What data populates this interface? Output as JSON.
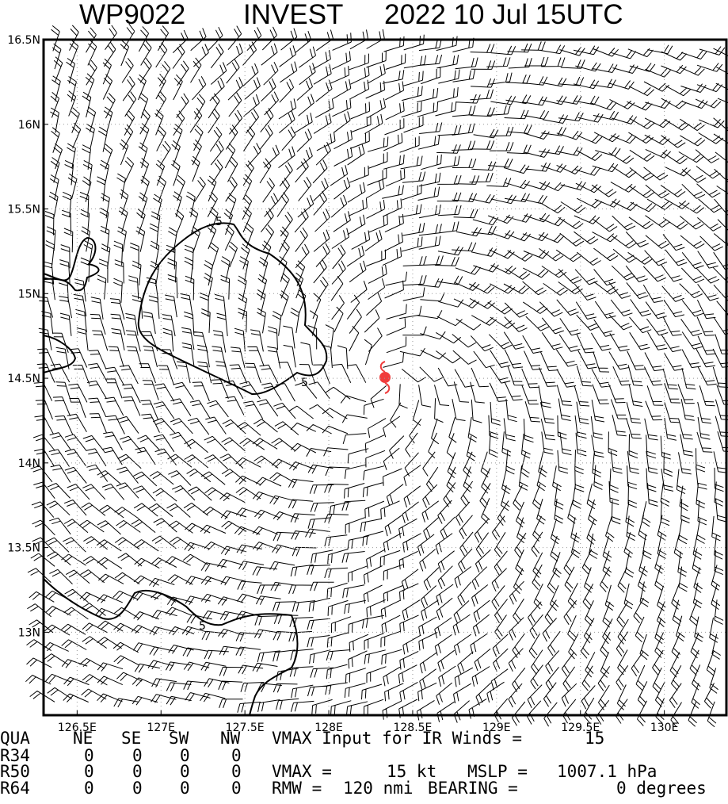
{
  "header": {
    "storm_id": "WP9022",
    "storm_type": "INVEST",
    "time": "2022 10 Jul 15UTC"
  },
  "map": {
    "lonlim": [
      126.3,
      130.37
    ],
    "latlim": [
      12.51,
      16.5
    ],
    "lonticks": [
      {
        "value": 126.5,
        "label": "126.5E"
      },
      {
        "value": 127,
        "label": "127E"
      },
      {
        "value": 127.5,
        "label": "127.5E"
      },
      {
        "value": 128,
        "label": "128E"
      },
      {
        "value": 128.5,
        "label": "128.5E"
      },
      {
        "value": 129,
        "label": "129E"
      },
      {
        "value": 129.5,
        "label": "129.5E"
      },
      {
        "value": 130,
        "label": "130E"
      }
    ],
    "latticks": [
      {
        "value": 13,
        "label": "13N"
      },
      {
        "value": 13.5,
        "label": "13.5N"
      },
      {
        "value": 14,
        "label": "14N"
      },
      {
        "value": 14.5,
        "label": "14.5N"
      },
      {
        "value": 15,
        "label": "15N"
      },
      {
        "value": 15.5,
        "label": "15.5N"
      },
      {
        "value": 16,
        "label": "16N"
      },
      {
        "value": 16.5,
        "label": "16.5N"
      }
    ],
    "contour_labels": [
      "5",
      "5",
      "5"
    ]
  },
  "info": {
    "header": [
      "QUA",
      "NE",
      "SE",
      "SW",
      "NW"
    ],
    "rows": [
      [
        "R34",
        "0",
        "0",
        "0",
        "0"
      ],
      [
        "R50",
        "0",
        "0",
        "0",
        "0"
      ],
      [
        "R64",
        "0",
        "0",
        "0",
        "0"
      ]
    ],
    "vmax_input_label": "VMAX Input for IR Winds =",
    "vmax_input": "15",
    "vmax_label": "VMAX =",
    "vmax": "15 kt",
    "mslp_label": "MSLP =",
    "mslp": "1007.1 hPa",
    "rmw_label": "RMW  =",
    "rmw": "120 nmi",
    "bearing_label": "BEARING =",
    "bearing": "0 degrees"
  }
}
